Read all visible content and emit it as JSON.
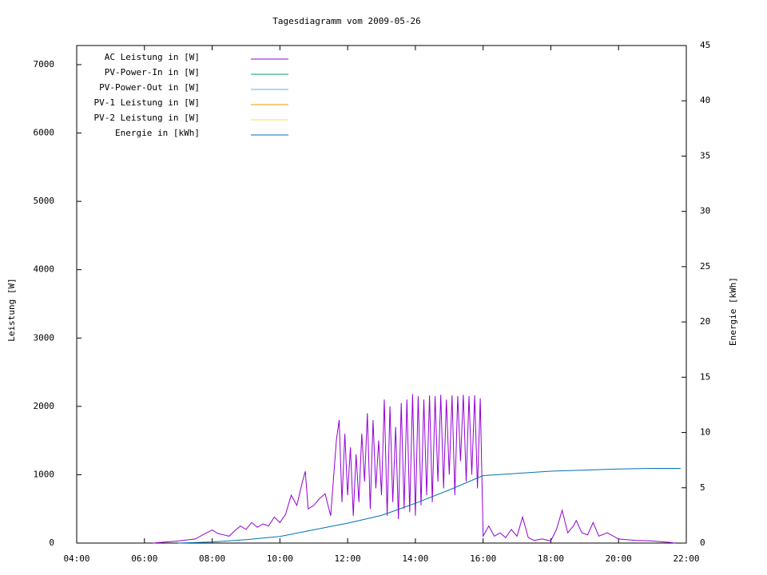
{
  "chart_data": {
    "type": "line",
    "title": "Tagesdiagramm vom 2009-05-26",
    "ylabel": "Leistung [W]",
    "y2label": "Energie [kWh]",
    "xlim": [
      "04:00",
      "22:00"
    ],
    "xticks": [
      "04:00",
      "06:00",
      "08:00",
      "10:00",
      "12:00",
      "14:00",
      "16:00",
      "18:00",
      "20:00",
      "22:00"
    ],
    "ylim": [
      0,
      7280
    ],
    "yticks": [
      0,
      1000,
      2000,
      3000,
      4000,
      5000,
      6000,
      7000
    ],
    "y2lim": [
      0,
      45
    ],
    "y2ticks": [
      0,
      5,
      10,
      15,
      20,
      25,
      30,
      35,
      40,
      45
    ],
    "grid": false,
    "legend": "top-left",
    "series": [
      {
        "name": "AC Leistung in [W]",
        "color": "#9400d3",
        "x": [
          "06:15",
          "06:30",
          "07:00",
          "07:30",
          "07:50",
          "08:00",
          "08:10",
          "08:20",
          "08:30",
          "08:40",
          "08:50",
          "09:00",
          "09:10",
          "09:20",
          "09:30",
          "09:40",
          "09:50",
          "10:00",
          "10:10",
          "10:20",
          "10:30",
          "10:40",
          "10:45",
          "10:50",
          "11:00",
          "11:10",
          "11:20",
          "11:30",
          "11:40",
          "11:45",
          "11:50",
          "11:55",
          "12:00",
          "12:05",
          "12:10",
          "12:15",
          "12:20",
          "12:25",
          "12:30",
          "12:35",
          "12:40",
          "12:45",
          "12:50",
          "12:55",
          "13:00",
          "13:05",
          "13:10",
          "13:15",
          "13:20",
          "13:25",
          "13:30",
          "13:35",
          "13:40",
          "13:45",
          "13:50",
          "13:55",
          "14:00",
          "14:05",
          "14:10",
          "14:15",
          "14:20",
          "14:25",
          "14:30",
          "14:35",
          "14:40",
          "14:45",
          "14:50",
          "14:55",
          "15:00",
          "15:05",
          "15:10",
          "15:15",
          "15:20",
          "15:25",
          "15:30",
          "15:35",
          "15:40",
          "15:45",
          "15:50",
          "15:55",
          "16:00",
          "16:10",
          "16:20",
          "16:30",
          "16:40",
          "16:50",
          "17:00",
          "17:10",
          "17:20",
          "17:30",
          "17:45",
          "18:00",
          "18:10",
          "18:20",
          "18:30",
          "18:40",
          "18:45",
          "18:55",
          "19:05",
          "19:15",
          "19:25",
          "19:40",
          "20:00",
          "20:30",
          "21:00",
          "21:30",
          "21:40"
        ],
        "values": [
          0,
          10,
          30,
          60,
          150,
          190,
          140,
          120,
          100,
          180,
          250,
          200,
          300,
          230,
          280,
          250,
          380,
          300,
          420,
          700,
          550,
          900,
          1050,
          500,
          550,
          650,
          720,
          400,
          1500,
          1800,
          600,
          1600,
          700,
          1400,
          400,
          1300,
          600,
          1600,
          900,
          1900,
          500,
          1800,
          800,
          1500,
          700,
          2100,
          400,
          2000,
          600,
          1700,
          350,
          2050,
          500,
          2100,
          450,
          2180,
          400,
          2150,
          550,
          2100,
          700,
          2160,
          600,
          2150,
          900,
          2170,
          800,
          2100,
          1000,
          2160,
          700,
          2150,
          1200,
          2170,
          900,
          2150,
          1000,
          2160,
          800,
          2120,
          100,
          250,
          100,
          150,
          80,
          200,
          100,
          380,
          80,
          40,
          60,
          30,
          200,
          480,
          150,
          250,
          330,
          150,
          120,
          300,
          100,
          150,
          60,
          40,
          30,
          10,
          0
        ]
      },
      {
        "name": "PV-Power-In in [W]",
        "color": "#009e73",
        "x": [],
        "values": []
      },
      {
        "name": "PV-Power-Out in [W]",
        "color": "#56b4e9",
        "x": [],
        "values": []
      },
      {
        "name": "PV-1 Leistung in [W]",
        "color": "#e69f00",
        "x": [],
        "values": []
      },
      {
        "name": "PV-2 Leistung in [W]",
        "color": "#f0e442",
        "x": [],
        "values": []
      },
      {
        "name": "Energie in [kWh]",
        "color": "#0072b2",
        "axis": "y2",
        "x": [
          "07:00",
          "08:00",
          "09:00",
          "10:00",
          "11:00",
          "12:00",
          "13:00",
          "14:00",
          "15:00",
          "16:00",
          "17:00",
          "18:00",
          "19:00",
          "20:00",
          "21:00",
          "21:50"
        ],
        "values": [
          0,
          0.1,
          0.3,
          0.6,
          1.2,
          1.8,
          2.5,
          3.6,
          4.8,
          6.1,
          6.3,
          6.5,
          6.6,
          6.7,
          6.75,
          6.75
        ]
      }
    ]
  }
}
